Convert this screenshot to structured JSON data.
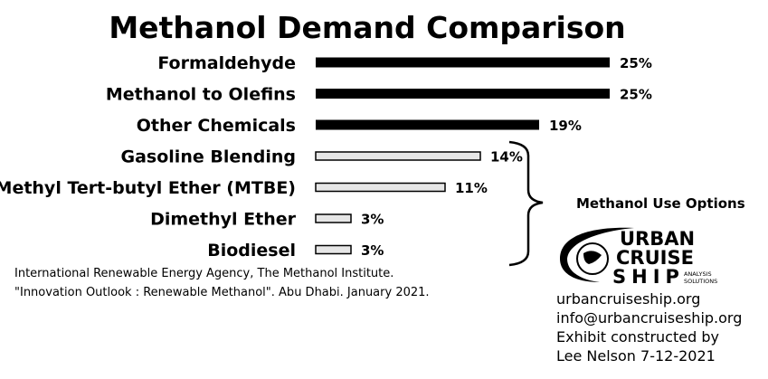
{
  "chart_data": {
    "type": "bar",
    "orientation": "horizontal",
    "title": "Methanol Demand Comparison",
    "categories": [
      "Formaldehyde",
      "Methanol to Olefins",
      "Other Chemicals",
      "Gasoline Blending",
      "Methyl Tert-butyl Ether (MTBE)",
      "Dimethyl Ether",
      "Biodiesel"
    ],
    "values": [
      25,
      25,
      19,
      14,
      11,
      3,
      3
    ],
    "value_labels": [
      "25%",
      "25%",
      "19%",
      "14%",
      "11%",
      "3%",
      "3%"
    ],
    "xlim": [
      0,
      25
    ],
    "colors": {
      "primary": "#000000",
      "highlighted": "#e6e6e6"
    },
    "highlighted_categories": [
      "Gasoline Blending",
      "Methyl Tert-butyl Ether (MTBE)",
      "Dimethyl Ether",
      "Biodiesel"
    ],
    "annotation": "Methanol Use Options",
    "grid": false,
    "legend": "none"
  },
  "source": {
    "line1": "International Renewable Energy Agency, The Methanol Institute.",
    "line2": "\"Innovation Outlook : Renewable Methanol\". Abu Dhabi. January 2021."
  },
  "logo": {
    "name": "urban-cruise-ship-logo",
    "word1": "URBAN",
    "word2": "CRUISE",
    "word3": "SHIP",
    "tagline1": "ANALYSIS",
    "tagline2": "SOLUTIONS"
  },
  "credits": {
    "website": "urbancruiseship.org",
    "email": "info@urbancruiseship.org",
    "line3": "Exhibit constructed by",
    "line4": "Lee Nelson 7-12-2021"
  }
}
